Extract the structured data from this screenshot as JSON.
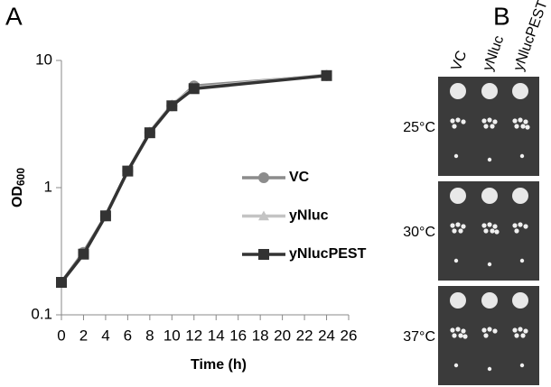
{
  "chart_data": {
    "type": "line",
    "x": [
      0,
      2,
      4,
      6,
      8,
      10,
      12,
      24
    ],
    "series": [
      {
        "name": "VC",
        "color": "#8c8c8c",
        "marker": "circle",
        "values": [
          0.18,
          0.31,
          0.6,
          1.35,
          2.7,
          4.4,
          6.3,
          7.6
        ]
      },
      {
        "name": "yNluc",
        "color": "#c4c4c4",
        "marker": "triangle",
        "values": [
          0.18,
          0.3,
          0.6,
          1.35,
          2.75,
          4.5,
          6.1,
          7.7
        ]
      },
      {
        "name": "yNlucPEST",
        "color": "#333333",
        "marker": "square",
        "values": [
          0.18,
          0.3,
          0.6,
          1.35,
          2.7,
          4.4,
          6.0,
          7.6
        ]
      }
    ],
    "xlim": [
      0,
      26
    ],
    "xticks": [
      0,
      2,
      4,
      6,
      8,
      10,
      12,
      14,
      16,
      18,
      20,
      22,
      24,
      26
    ],
    "ylim": [
      0.1,
      10
    ],
    "yticks": [
      0.1,
      1,
      10
    ],
    "ylog": true,
    "xlabel": "Time (h)",
    "ylabel": "OD",
    "ylabel_subscript": "600"
  },
  "panels": {
    "a": "A",
    "b": "B"
  },
  "plate": {
    "strains": [
      "VC",
      "yNluc",
      "yNlucPEST"
    ],
    "temperatures": [
      "25°C",
      "30°C",
      "37°C"
    ]
  }
}
